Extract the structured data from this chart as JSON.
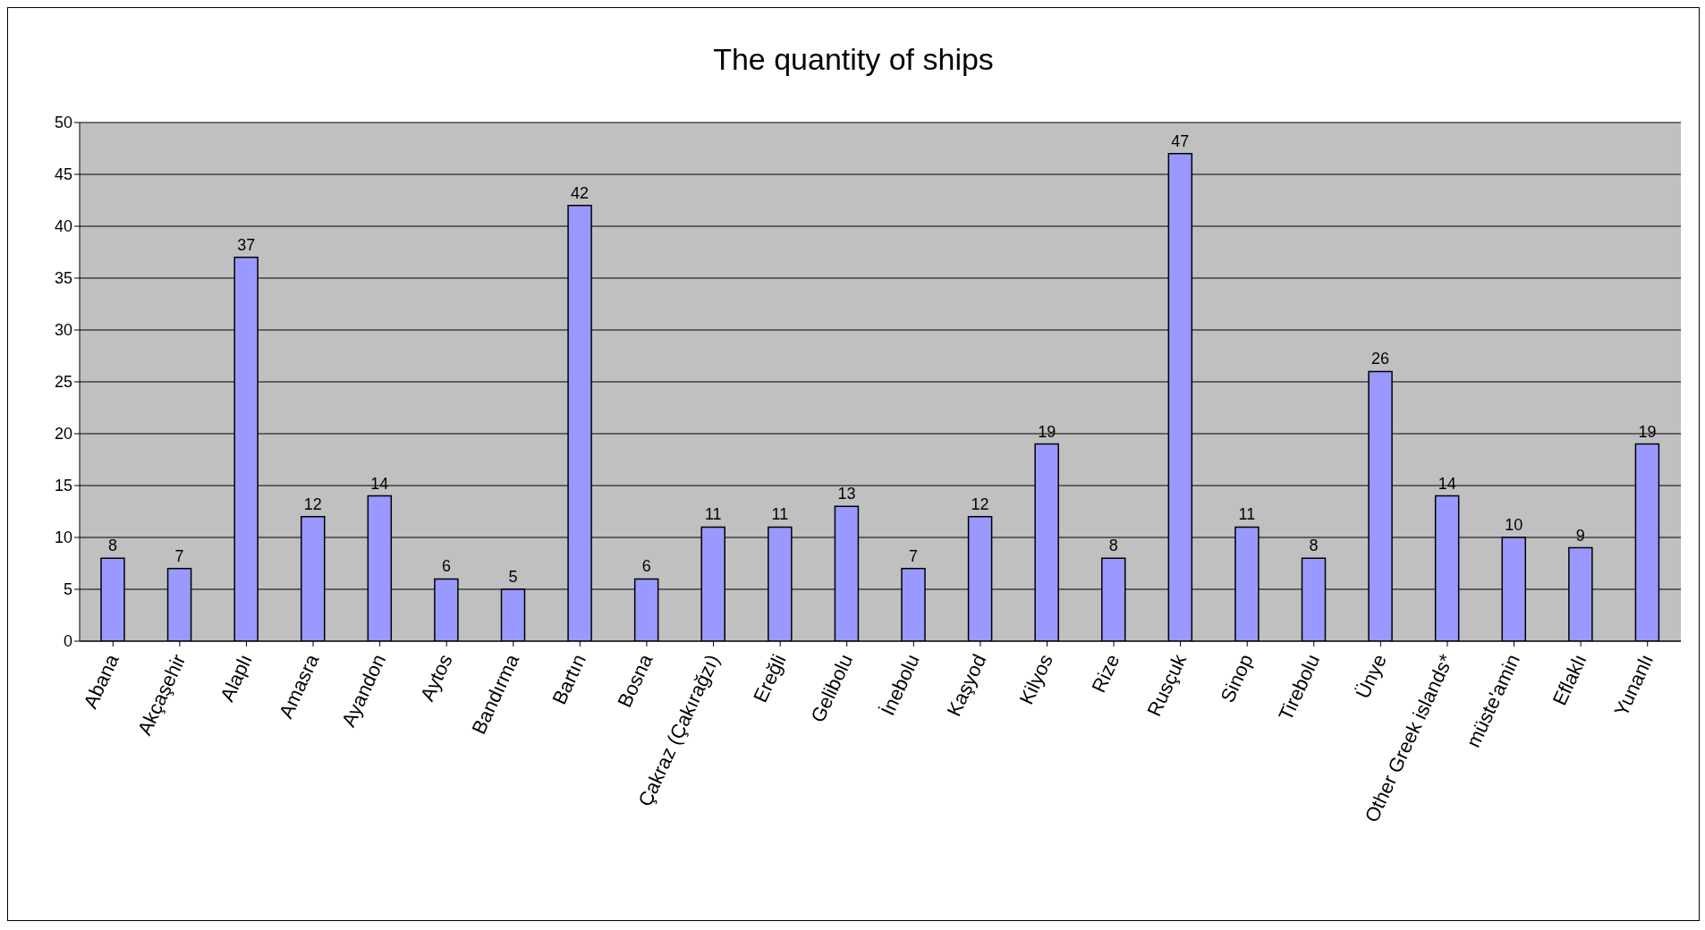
{
  "chart_data": {
    "type": "bar",
    "title": "The quantity of ships",
    "categories": [
      "Abana",
      "Akçaşehir",
      "Alaplı",
      "Amasra",
      "Ayandon",
      "Aytos",
      "Bandırma",
      "Bartın",
      "Bosna",
      "Çakraz (Çakırağzı)",
      "Ereğli",
      "Gelibolu",
      "İnebolu",
      "Kaşyod",
      "Kilyos",
      "Rize",
      "Rusçuk",
      "Sinop",
      "Tirebolu",
      "Ünye",
      "Other Greek islands*",
      "müste'amin",
      "Eflaklı",
      "Yunanlı"
    ],
    "values": [
      8,
      7,
      37,
      12,
      14,
      6,
      5,
      42,
      6,
      11,
      11,
      13,
      7,
      12,
      19,
      8,
      47,
      11,
      8,
      26,
      14,
      10,
      9,
      19
    ],
    "color": "#9999ff",
    "ylim": [
      0,
      50
    ],
    "yticks": [
      0,
      5,
      10,
      15,
      20,
      25,
      30,
      35,
      40,
      45,
      50
    ],
    "grid": "y",
    "data_labels": true
  }
}
